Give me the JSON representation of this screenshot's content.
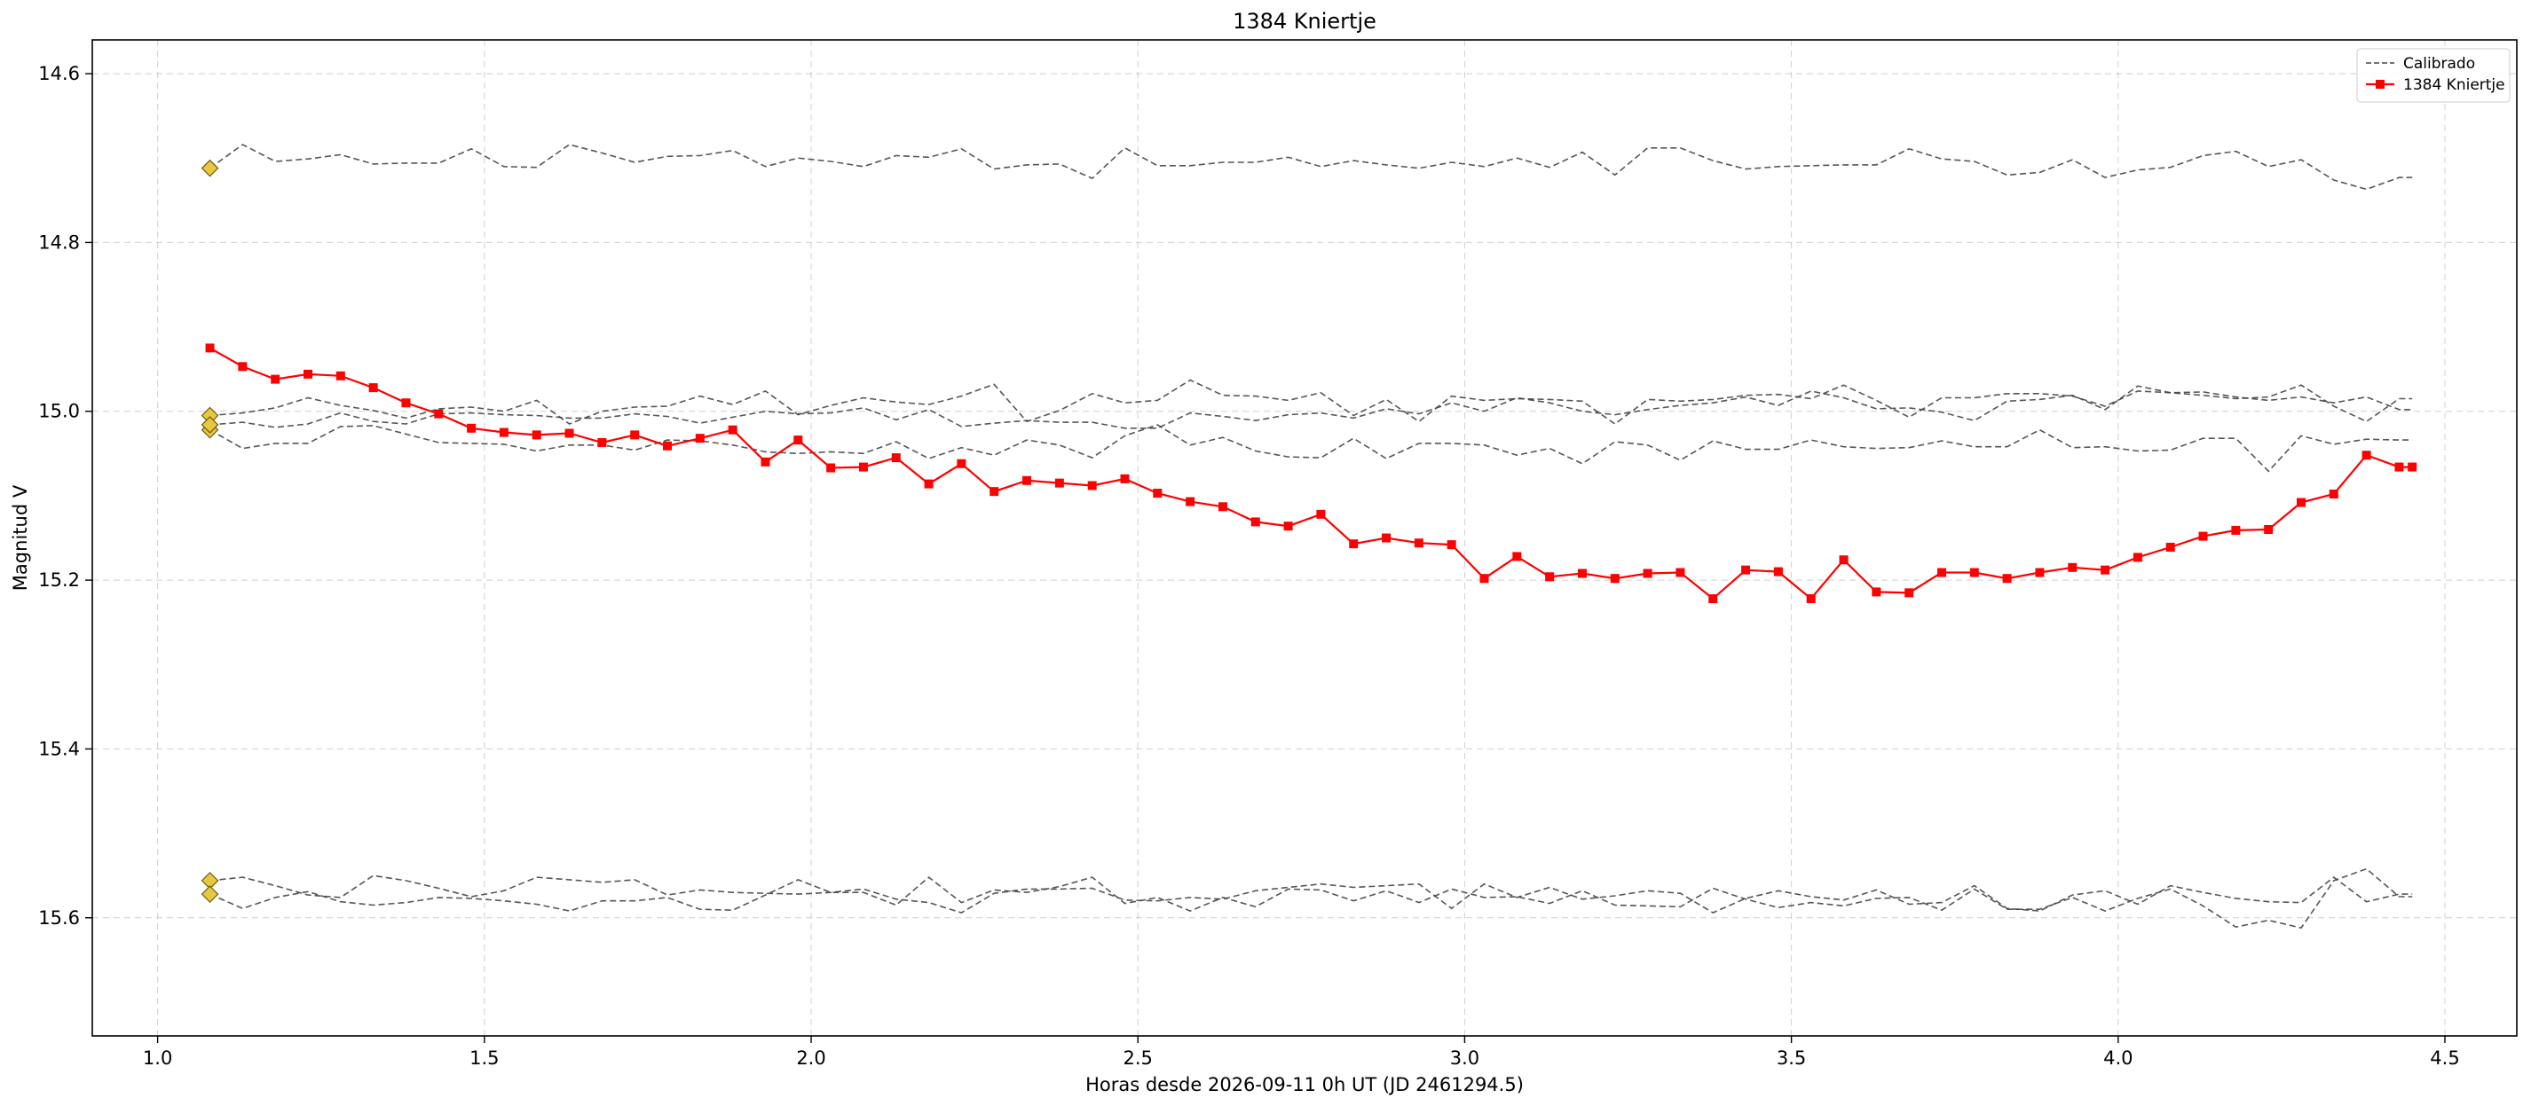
{
  "chart_data": {
    "type": "line",
    "title": "1384 Kniertje",
    "xlabel": "Horas desde 2026-09-11 0h UT (JD 2461294.5)",
    "ylabel": "Magnitud V",
    "xlim": [
      0.9,
      4.61
    ],
    "ylim": [
      15.74,
      14.56
    ],
    "y_inverted": true,
    "grid": true,
    "legend_position": "top-right",
    "x_ticks": [
      1.0,
      1.5,
      2.0,
      2.5,
      3.0,
      3.5,
      4.0,
      4.5
    ],
    "x_tick_labels": [
      "1.0",
      "1.5",
      "2.0",
      "2.5",
      "3.0",
      "3.5",
      "4.0",
      "4.5"
    ],
    "y_ticks": [
      14.6,
      14.8,
      15.0,
      15.2,
      15.4,
      15.6
    ],
    "y_tick_labels": [
      "14.6",
      "14.8",
      "15.0",
      "15.2",
      "15.4",
      "15.6"
    ],
    "legend": [
      {
        "label": "Calibrado",
        "style": "dashed",
        "color": "#444444"
      },
      {
        "label": "1384 Kniertje",
        "style": "solid-square",
        "color": "#ff0000"
      }
    ],
    "x": [
      1.08,
      1.13,
      1.18,
      1.23,
      1.28,
      1.33,
      1.38,
      1.43,
      1.48,
      1.53,
      1.58,
      1.63,
      1.68,
      1.73,
      1.78,
      1.83,
      1.88,
      1.93,
      1.98,
      2.03,
      2.08,
      2.13,
      2.18,
      2.23,
      2.28,
      2.33,
      2.38,
      2.43,
      2.48,
      2.53,
      2.58,
      2.63,
      2.68,
      2.73,
      2.78,
      2.83,
      2.88,
      2.93,
      2.98,
      3.03,
      3.08,
      3.13,
      3.18,
      3.23,
      3.28,
      3.33,
      3.38,
      3.43,
      3.48,
      3.53,
      3.58,
      3.63,
      3.68,
      3.73,
      3.78,
      3.83,
      3.88,
      3.93,
      3.98,
      4.03,
      4.08,
      4.13,
      4.18,
      4.23,
      4.28,
      4.33,
      4.38,
      4.43,
      4.45
    ],
    "series": [
      {
        "name": "1384 Kniertje",
        "role": "target",
        "color": "#ff0000",
        "values": [
          14.925,
          14.947,
          14.962,
          14.956,
          14.958,
          14.972,
          14.99,
          15.003,
          15.02,
          15.025,
          15.028,
          15.026,
          15.037,
          15.028,
          15.041,
          15.032,
          15.022,
          15.06,
          15.034,
          15.067,
          15.066,
          15.055,
          15.086,
          15.062,
          15.095,
          15.082,
          15.085,
          15.088,
          15.08,
          15.097,
          15.107,
          15.113,
          15.131,
          15.136,
          15.122,
          15.157,
          15.15,
          15.156,
          15.158,
          15.198,
          15.172,
          15.196,
          15.192,
          15.198,
          15.192,
          15.191,
          15.222,
          15.188,
          15.19,
          15.222,
          15.176,
          15.214,
          15.215,
          15.191,
          15.191,
          15.198,
          15.191,
          15.185,
          15.188,
          15.173,
          15.161,
          15.148,
          15.141,
          15.14,
          15.108,
          15.098,
          15.052,
          15.066,
          15.066
        ]
      },
      {
        "name": "Calibrado",
        "role": "comparison",
        "color": "#444444",
        "values": [
          14.712,
          14.684,
          14.704,
          14.701,
          14.696,
          14.707,
          14.706,
          14.706,
          14.689,
          14.71,
          14.711,
          14.684,
          14.694,
          14.705,
          14.698,
          14.697,
          14.691,
          14.71,
          14.7,
          14.704,
          14.71,
          14.697,
          14.699,
          14.689,
          14.713,
          14.708,
          14.707,
          14.724,
          14.688,
          14.709,
          14.709,
          14.705,
          14.705,
          14.699,
          14.71,
          14.703,
          14.708,
          14.712,
          14.705,
          14.71,
          14.7,
          14.711,
          14.693,
          14.72,
          14.688,
          14.688,
          14.703,
          14.713,
          14.71,
          14.709,
          14.708,
          14.708,
          14.689,
          14.701,
          14.704,
          14.72,
          14.717,
          14.702,
          14.723,
          14.714,
          14.711,
          14.697,
          14.692,
          14.71,
          14.702,
          14.726,
          14.737,
          14.723,
          14.723
        ]
      },
      {
        "name": "Calibrado",
        "role": "comparison",
        "color": "#444444",
        "values": [
          15.005,
          15.002,
          14.996,
          14.984,
          14.993,
          14.999,
          15.008,
          14.997,
          14.995,
          15.0,
          14.987,
          15.015,
          15.0,
          14.995,
          14.994,
          14.982,
          14.992,
          14.976,
          15.004,
          14.993,
          14.984,
          14.989,
          14.992,
          14.982,
          14.968,
          15.012,
          14.999,
          14.979,
          14.99,
          14.987,
          14.963,
          14.981,
          14.982,
          14.987,
          14.978,
          15.005,
          14.986,
          15.012,
          14.982,
          14.987,
          14.985,
          14.986,
          14.988,
          15.015,
          14.986,
          14.988,
          14.986,
          14.981,
          14.98,
          14.985,
          14.969,
          14.987,
          15.007,
          14.984,
          14.984,
          14.979,
          14.979,
          14.982,
          14.994,
          14.976,
          14.978,
          14.981,
          14.985,
          14.983,
          14.969,
          14.994,
          15.012,
          14.985,
          14.985
        ]
      },
      {
        "name": "Calibrado",
        "role": "comparison",
        "color": "#444444",
        "values": [
          15.016,
          15.013,
          15.019,
          15.015,
          15.002,
          15.012,
          15.015,
          15.003,
          15.002,
          15.004,
          15.005,
          15.008,
          15.008,
          15.003,
          15.006,
          15.014,
          15.007,
          15.0,
          15.003,
          15.002,
          14.996,
          15.01,
          14.998,
          15.018,
          15.014,
          15.011,
          15.013,
          15.013,
          15.02,
          15.02,
          15.002,
          15.006,
          15.011,
          15.004,
          15.002,
          15.008,
          14.997,
          15.003,
          14.99,
          15.0,
          14.984,
          14.99,
          15.0,
          15.004,
          14.998,
          14.993,
          14.99,
          14.983,
          14.993,
          14.976,
          14.984,
          14.997,
          14.996,
          15.001,
          15.011,
          14.988,
          14.986,
          14.981,
          14.998,
          14.97,
          14.978,
          14.977,
          14.983,
          14.987,
          14.983,
          14.99,
          14.983,
          14.998,
          14.998
        ]
      },
      {
        "name": "Calibrado",
        "role": "comparison",
        "color": "#444444",
        "values": [
          15.022,
          15.044,
          15.038,
          15.038,
          15.018,
          15.017,
          15.027,
          15.037,
          15.038,
          15.039,
          15.047,
          15.04,
          15.04,
          15.046,
          15.034,
          15.035,
          15.04,
          15.048,
          15.05,
          15.048,
          15.05,
          15.036,
          15.056,
          15.043,
          15.052,
          15.034,
          15.04,
          15.055,
          15.029,
          15.016,
          15.04,
          15.031,
          15.047,
          15.054,
          15.055,
          15.032,
          15.056,
          15.038,
          15.038,
          15.04,
          15.052,
          15.044,
          15.062,
          15.036,
          15.04,
          15.058,
          15.035,
          15.045,
          15.045,
          15.034,
          15.042,
          15.044,
          15.043,
          15.035,
          15.042,
          15.042,
          15.022,
          15.043,
          15.042,
          15.047,
          15.046,
          15.032,
          15.032,
          15.071,
          15.029,
          15.039,
          15.033,
          15.034,
          15.034
        ]
      },
      {
        "name": "Calibrado",
        "role": "comparison",
        "color": "#444444",
        "values": [
          15.556,
          15.552,
          15.562,
          15.573,
          15.576,
          15.55,
          15.556,
          15.565,
          15.575,
          15.568,
          15.552,
          15.555,
          15.558,
          15.555,
          15.573,
          15.567,
          15.57,
          15.571,
          15.572,
          15.57,
          15.566,
          15.578,
          15.582,
          15.594,
          15.571,
          15.566,
          15.566,
          15.565,
          15.579,
          15.58,
          15.576,
          15.578,
          15.568,
          15.564,
          15.56,
          15.564,
          15.562,
          15.56,
          15.589,
          15.56,
          15.576,
          15.564,
          15.578,
          15.574,
          15.568,
          15.571,
          15.594,
          15.577,
          15.568,
          15.575,
          15.579,
          15.567,
          15.584,
          15.582,
          15.562,
          15.589,
          15.592,
          15.573,
          15.568,
          15.584,
          15.562,
          15.57,
          15.577,
          15.581,
          15.582,
          15.552,
          15.581,
          15.572,
          15.572
        ]
      },
      {
        "name": "Calibrado",
        "role": "comparison",
        "color": "#444444",
        "values": [
          15.572,
          15.589,
          15.576,
          15.569,
          15.581,
          15.585,
          15.582,
          15.576,
          15.577,
          15.58,
          15.584,
          15.592,
          15.58,
          15.58,
          15.576,
          15.59,
          15.591,
          15.573,
          15.555,
          15.57,
          15.57,
          15.585,
          15.552,
          15.582,
          15.567,
          15.57,
          15.563,
          15.552,
          15.583,
          15.576,
          15.592,
          15.576,
          15.587,
          15.566,
          15.567,
          15.58,
          15.568,
          15.582,
          15.566,
          15.576,
          15.575,
          15.583,
          15.568,
          15.585,
          15.586,
          15.587,
          15.565,
          15.578,
          15.588,
          15.582,
          15.586,
          15.577,
          15.576,
          15.591,
          15.566,
          15.59,
          15.59,
          15.576,
          15.592,
          15.577,
          15.566,
          15.586,
          15.611,
          15.603,
          15.612,
          15.556,
          15.542,
          15.575,
          15.575
        ]
      }
    ],
    "start_markers": {
      "color": "#e8c840",
      "shape": "diamond",
      "x": 1.08,
      "values": [
        14.712,
        15.005,
        15.022,
        15.016,
        15.556,
        15.572
      ]
    }
  }
}
